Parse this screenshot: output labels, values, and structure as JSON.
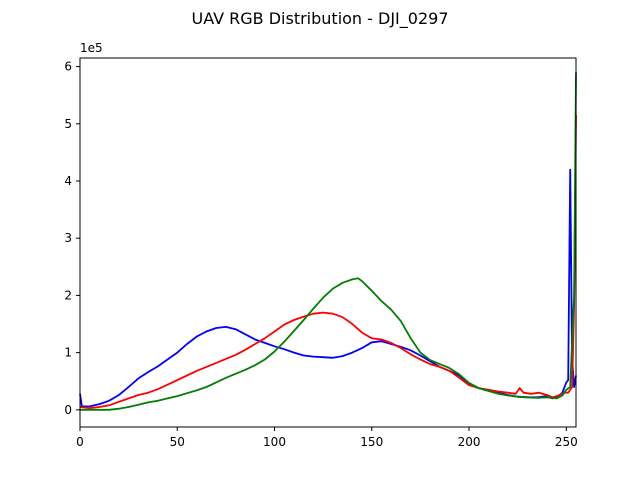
{
  "chart_data": {
    "type": "line",
    "title": "UAV RGB Distribution - DJI_0297",
    "xlabel": "",
    "ylabel": "",
    "y_multiplier_label": "1e5",
    "xlim": [
      0,
      255
    ],
    "ylim": [
      -30000,
      615000
    ],
    "x_ticks": [
      0,
      50,
      100,
      150,
      200,
      250
    ],
    "y_ticks": [
      0,
      100000,
      200000,
      300000,
      400000,
      500000,
      600000
    ],
    "y_tick_labels": [
      "0",
      "1",
      "2",
      "3",
      "4",
      "5",
      "6"
    ],
    "grid": false,
    "legend": "none",
    "series": [
      {
        "color": "#0000ff",
        "points": [
          [
            0,
            28000
          ],
          [
            1,
            6000
          ],
          [
            5,
            6000
          ],
          [
            10,
            10000
          ],
          [
            15,
            16000
          ],
          [
            20,
            26000
          ],
          [
            25,
            40000
          ],
          [
            30,
            55000
          ],
          [
            35,
            66000
          ],
          [
            40,
            76000
          ],
          [
            45,
            88000
          ],
          [
            50,
            100000
          ],
          [
            55,
            115000
          ],
          [
            60,
            128000
          ],
          [
            65,
            137000
          ],
          [
            70,
            143000
          ],
          [
            75,
            145000
          ],
          [
            80,
            141000
          ],
          [
            85,
            132000
          ],
          [
            90,
            123000
          ],
          [
            95,
            117000
          ],
          [
            100,
            111000
          ],
          [
            105,
            106000
          ],
          [
            110,
            100000
          ],
          [
            115,
            95000
          ],
          [
            120,
            93000
          ],
          [
            125,
            92000
          ],
          [
            130,
            91000
          ],
          [
            135,
            94000
          ],
          [
            140,
            100000
          ],
          [
            145,
            108000
          ],
          [
            150,
            118000
          ],
          [
            155,
            120000
          ],
          [
            160,
            115000
          ],
          [
            165,
            110000
          ],
          [
            170,
            104000
          ],
          [
            175,
            95000
          ],
          [
            180,
            85000
          ],
          [
            185,
            75000
          ],
          [
            190,
            68000
          ],
          [
            195,
            60000
          ],
          [
            200,
            45000
          ],
          [
            205,
            38000
          ],
          [
            210,
            34000
          ],
          [
            215,
            30000
          ],
          [
            220,
            26000
          ],
          [
            225,
            23000
          ],
          [
            230,
            22000
          ],
          [
            235,
            22000
          ],
          [
            240,
            24000
          ],
          [
            243,
            20000
          ],
          [
            245,
            22000
          ],
          [
            248,
            30000
          ],
          [
            250,
            48000
          ],
          [
            251,
            52000
          ],
          [
            252,
            420000
          ],
          [
            253,
            90000
          ],
          [
            254,
            40000
          ],
          [
            255,
            60000
          ]
        ]
      },
      {
        "color": "#ff0000",
        "points": [
          [
            0,
            5000
          ],
          [
            5,
            3000
          ],
          [
            10,
            5000
          ],
          [
            15,
            8000
          ],
          [
            20,
            14000
          ],
          [
            25,
            20000
          ],
          [
            30,
            26000
          ],
          [
            35,
            30000
          ],
          [
            40,
            36000
          ],
          [
            45,
            44000
          ],
          [
            50,
            52000
          ],
          [
            55,
            60000
          ],
          [
            60,
            68000
          ],
          [
            65,
            75000
          ],
          [
            70,
            82000
          ],
          [
            75,
            89000
          ],
          [
            80,
            96000
          ],
          [
            85,
            105000
          ],
          [
            90,
            115000
          ],
          [
            95,
            125000
          ],
          [
            100,
            137000
          ],
          [
            105,
            149000
          ],
          [
            110,
            157000
          ],
          [
            115,
            163000
          ],
          [
            120,
            168000
          ],
          [
            125,
            170000
          ],
          [
            130,
            168000
          ],
          [
            135,
            162000
          ],
          [
            140,
            150000
          ],
          [
            145,
            135000
          ],
          [
            150,
            125000
          ],
          [
            155,
            123000
          ],
          [
            160,
            117000
          ],
          [
            165,
            108000
          ],
          [
            170,
            97000
          ],
          [
            175,
            88000
          ],
          [
            180,
            80000
          ],
          [
            185,
            75000
          ],
          [
            190,
            68000
          ],
          [
            195,
            56000
          ],
          [
            200,
            43000
          ],
          [
            205,
            38000
          ],
          [
            210,
            35000
          ],
          [
            215,
            32000
          ],
          [
            220,
            30000
          ],
          [
            224,
            28000
          ],
          [
            226,
            38000
          ],
          [
            228,
            30000
          ],
          [
            232,
            28000
          ],
          [
            236,
            30000
          ],
          [
            240,
            26000
          ],
          [
            243,
            22000
          ],
          [
            246,
            25000
          ],
          [
            249,
            30000
          ],
          [
            251,
            30000
          ],
          [
            253,
            40000
          ],
          [
            254,
            180000
          ],
          [
            255,
            515000
          ]
        ]
      },
      {
        "color": "#008000",
        "points": [
          [
            0,
            0
          ],
          [
            5,
            0
          ],
          [
            10,
            0
          ],
          [
            15,
            0
          ],
          [
            20,
            2000
          ],
          [
            25,
            5000
          ],
          [
            30,
            9000
          ],
          [
            35,
            13000
          ],
          [
            40,
            16000
          ],
          [
            45,
            20000
          ],
          [
            50,
            24000
          ],
          [
            55,
            29000
          ],
          [
            60,
            34000
          ],
          [
            65,
            40000
          ],
          [
            70,
            48000
          ],
          [
            75,
            56000
          ],
          [
            80,
            63000
          ],
          [
            85,
            70000
          ],
          [
            90,
            78000
          ],
          [
            95,
            88000
          ],
          [
            100,
            102000
          ],
          [
            105,
            119000
          ],
          [
            110,
            138000
          ],
          [
            115,
            157000
          ],
          [
            120,
            177000
          ],
          [
            125,
            196000
          ],
          [
            130,
            212000
          ],
          [
            135,
            222000
          ],
          [
            140,
            228000
          ],
          [
            143,
            230000
          ],
          [
            145,
            225000
          ],
          [
            150,
            208000
          ],
          [
            155,
            190000
          ],
          [
            160,
            175000
          ],
          [
            165,
            155000
          ],
          [
            170,
            125000
          ],
          [
            175,
            100000
          ],
          [
            180,
            87000
          ],
          [
            185,
            80000
          ],
          [
            190,
            73000
          ],
          [
            195,
            62000
          ],
          [
            200,
            47000
          ],
          [
            205,
            38000
          ],
          [
            210,
            33000
          ],
          [
            215,
            28000
          ],
          [
            220,
            25000
          ],
          [
            225,
            23000
          ],
          [
            230,
            22000
          ],
          [
            235,
            21000
          ],
          [
            240,
            22000
          ],
          [
            245,
            20000
          ],
          [
            248,
            25000
          ],
          [
            250,
            35000
          ],
          [
            252,
            40000
          ],
          [
            254,
            200000
          ],
          [
            255,
            590000
          ]
        ]
      }
    ]
  }
}
